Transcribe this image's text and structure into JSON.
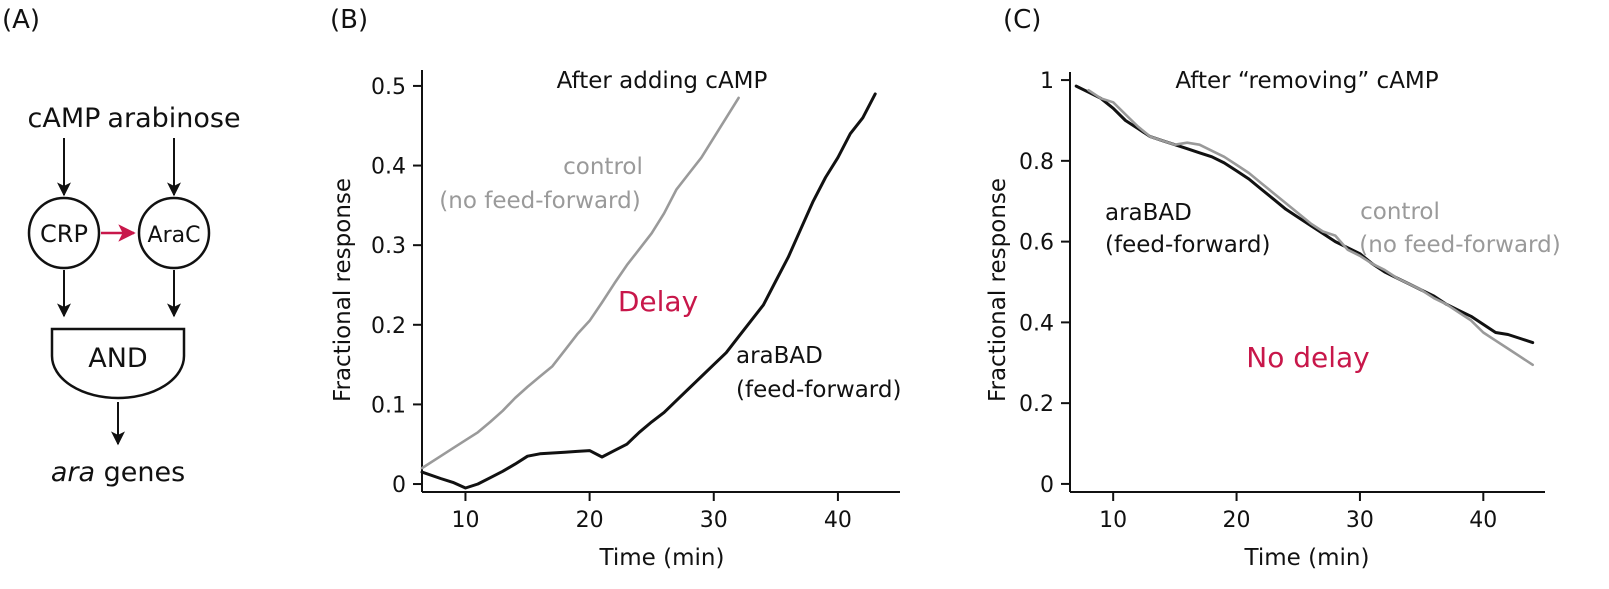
{
  "panels": {
    "a": "(A)",
    "b": "(B)",
    "c": "(C)"
  },
  "colors": {
    "black_line": "#111111",
    "gray_line": "#9a9a9a",
    "accent": "#c8174a"
  },
  "diagram": {
    "inputs": [
      "cAMP",
      "arabinose"
    ],
    "nodes": [
      "CRP",
      "AraC"
    ],
    "gate": "AND",
    "output_italic": "ara",
    "output_rest": " genes"
  },
  "chart_data": [
    {
      "type": "line",
      "title": "After adding cAMP",
      "xlabel": "Time (min)",
      "ylabel": "Fractional response",
      "xlim": [
        6.5,
        45
      ],
      "ylim": [
        -0.01,
        0.52
      ],
      "xticks": [
        10,
        20,
        30,
        40
      ],
      "yticks": [
        0,
        0.1,
        0.2,
        0.3,
        0.4,
        0.5
      ],
      "ytick_labels": [
        "0",
        "0.1",
        "0.2",
        "0.3",
        "0.4",
        "0.5"
      ],
      "grid": false,
      "series": [
        {
          "name": "control\n(no feed-forward)",
          "color": "#9a9a9a",
          "x": [
            6.5,
            8,
            9,
            10,
            11,
            12,
            13,
            14,
            15,
            16,
            17,
            18,
            19,
            20,
            21,
            22,
            23,
            24,
            25,
            26,
            27,
            28,
            29,
            30,
            31,
            32
          ],
          "y": [
            0.02,
            0.035,
            0.045,
            0.055,
            0.065,
            0.078,
            0.092,
            0.108,
            0.122,
            0.135,
            0.148,
            0.168,
            0.188,
            0.205,
            0.228,
            0.252,
            0.275,
            0.295,
            0.315,
            0.34,
            0.37,
            0.39,
            0.41,
            0.435,
            0.46,
            0.485
          ]
        },
        {
          "name": "araBAD\n(feed-forward)",
          "color": "#111111",
          "x": [
            6.5,
            8,
            9,
            10,
            11,
            12,
            13,
            14,
            15,
            16,
            17,
            18,
            19,
            20,
            21,
            22,
            23,
            24,
            25,
            26,
            27,
            28,
            29,
            30,
            31,
            32,
            33,
            34,
            35,
            36,
            37,
            38,
            39,
            40,
            41,
            42,
            43
          ],
          "y": [
            0.015,
            0.007,
            0.002,
            -0.005,
            0.0,
            0.008,
            0.016,
            0.025,
            0.035,
            0.038,
            0.039,
            0.04,
            0.041,
            0.042,
            0.034,
            0.042,
            0.05,
            0.065,
            0.078,
            0.09,
            0.105,
            0.12,
            0.135,
            0.15,
            0.165,
            0.185,
            0.205,
            0.225,
            0.255,
            0.285,
            0.32,
            0.355,
            0.385,
            0.41,
            0.44,
            0.46,
            0.49
          ]
        }
      ],
      "annotations": [
        {
          "text": "control",
          "color": "#9a9a9a"
        },
        {
          "text": "(no feed-forward)",
          "color": "#9a9a9a"
        },
        {
          "text": "Delay",
          "color": "#c8174a"
        },
        {
          "text": "araBAD",
          "color": "#111111"
        },
        {
          "text": "(feed-forward)",
          "color": "#111111"
        }
      ]
    },
    {
      "type": "line",
      "title": "After “removing” cAMP",
      "xlabel": "Time (min)",
      "ylabel": "Fractional response",
      "xlim": [
        6.5,
        45
      ],
      "ylim": [
        -0.02,
        1.02
      ],
      "xticks": [
        10,
        20,
        30,
        40
      ],
      "yticks": [
        0,
        0.2,
        0.4,
        0.6,
        0.8,
        1
      ],
      "ytick_labels": [
        "0",
        "0.2",
        "0.4",
        "0.6",
        "0.8",
        "1"
      ],
      "grid": false,
      "series": [
        {
          "name": "araBAD\n(feed-forward)",
          "color": "#111111",
          "x": [
            7,
            8,
            9,
            10,
            11,
            12,
            13,
            14,
            15,
            16,
            17,
            18,
            19,
            20,
            21,
            22,
            23,
            24,
            25,
            26,
            27,
            28,
            29,
            30,
            31,
            32,
            33,
            34,
            35,
            36,
            37,
            38,
            39,
            40,
            41,
            42,
            43,
            44
          ],
          "y": [
            0.985,
            0.97,
            0.955,
            0.93,
            0.9,
            0.88,
            0.86,
            0.85,
            0.84,
            0.83,
            0.82,
            0.81,
            0.795,
            0.775,
            0.755,
            0.73,
            0.705,
            0.68,
            0.66,
            0.64,
            0.62,
            0.6,
            0.585,
            0.57,
            0.545,
            0.525,
            0.51,
            0.495,
            0.48,
            0.465,
            0.445,
            0.43,
            0.415,
            0.395,
            0.375,
            0.37,
            0.36,
            0.35
          ]
        },
        {
          "name": "control\n(no feed-forward)",
          "color": "#9a9a9a",
          "x": [
            8,
            9,
            10,
            11,
            12,
            13,
            14,
            15,
            16,
            17,
            18,
            19,
            20,
            21,
            22,
            23,
            24,
            25,
            26,
            27,
            28,
            29,
            30,
            31,
            32,
            33,
            34,
            35,
            36,
            37,
            38,
            39,
            40,
            41,
            42,
            43,
            44
          ],
          "y": [
            0.975,
            0.955,
            0.945,
            0.915,
            0.885,
            0.86,
            0.85,
            0.84,
            0.845,
            0.84,
            0.825,
            0.81,
            0.79,
            0.77,
            0.745,
            0.72,
            0.695,
            0.67,
            0.645,
            0.625,
            0.615,
            0.58,
            0.565,
            0.545,
            0.53,
            0.51,
            0.495,
            0.48,
            0.46,
            0.445,
            0.425,
            0.405,
            0.375,
            0.355,
            0.335,
            0.315,
            0.295
          ]
        }
      ],
      "annotations": [
        {
          "text": "araBAD",
          "color": "#111111"
        },
        {
          "text": "(feed-forward)",
          "color": "#111111"
        },
        {
          "text": "control",
          "color": "#9a9a9a"
        },
        {
          "text": "(no feed-forward)",
          "color": "#9a9a9a"
        },
        {
          "text": "No delay",
          "color": "#c8174a"
        }
      ]
    }
  ]
}
